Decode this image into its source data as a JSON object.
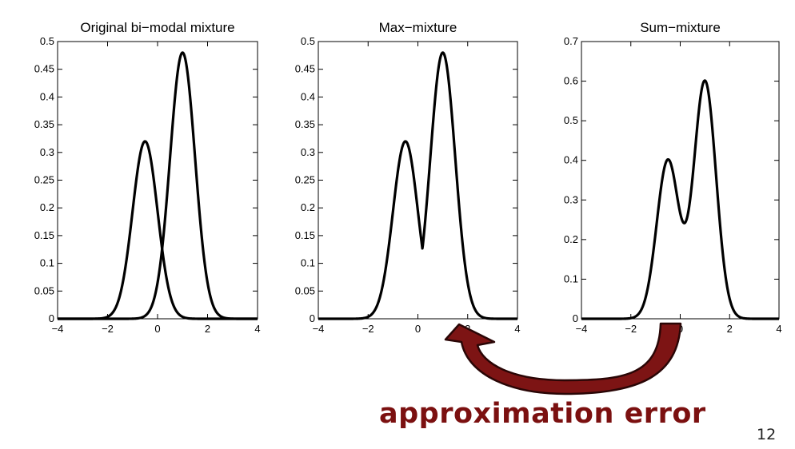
{
  "chart_data": [
    {
      "type": "line",
      "title": "Original bi−modal mixture",
      "xlim": [
        -4,
        4
      ],
      "ylim": [
        0,
        0.5
      ],
      "xticks": [
        "−4",
        "−2",
        "0",
        "2",
        "4"
      ],
      "yticks": [
        "0",
        "0.05",
        "0.1",
        "0.15",
        "0.2",
        "0.25",
        "0.3",
        "0.35",
        "0.4",
        "0.45",
        "0.5"
      ],
      "components": [
        {
          "mean": -0.5,
          "peak": 0.32,
          "sd": 0.5
        },
        {
          "mean": 1.0,
          "peak": 0.48,
          "sd": 0.5
        }
      ],
      "series": [
        {
          "x": [
            -4,
            -2,
            -1.5,
            -1,
            -0.5,
            0,
            0.5,
            1,
            1.5,
            2,
            2.5,
            4
          ],
          "y": [
            0,
            0.004,
            0.043,
            0.194,
            0.32,
            0.194,
            0.043,
            0.004,
            0,
            0,
            0,
            0
          ]
        },
        {
          "x": [
            -4,
            -1,
            -0.5,
            0,
            0.5,
            1,
            1.5,
            2,
            2.5,
            3,
            4
          ],
          "y": [
            0,
            0,
            0.005,
            0.065,
            0.291,
            0.48,
            0.291,
            0.065,
            0.005,
            0,
            0
          ]
        }
      ]
    },
    {
      "type": "line",
      "title": "Max−mixture",
      "xlim": [
        -4,
        4
      ],
      "ylim": [
        0,
        0.5
      ],
      "xticks": [
        "−4",
        "−2",
        "0",
        "2",
        "4"
      ],
      "yticks": [
        "0",
        "0.05",
        "0.1",
        "0.15",
        "0.2",
        "0.25",
        "0.3",
        "0.35",
        "0.4",
        "0.45",
        "0.5"
      ],
      "components": [
        {
          "mean": -0.5,
          "peak": 0.32,
          "sd": 0.5
        },
        {
          "mean": 1.0,
          "peak": 0.48,
          "sd": 0.5
        }
      ],
      "series": [
        {
          "x": [
            -4,
            -2,
            -1.5,
            -1,
            -0.5,
            0,
            0.2,
            0.5,
            1,
            1.5,
            2,
            2.5,
            4
          ],
          "y": [
            0,
            0.004,
            0.043,
            0.194,
            0.32,
            0.194,
            0.125,
            0.291,
            0.48,
            0.291,
            0.065,
            0.005,
            0
          ]
        }
      ]
    },
    {
      "type": "line",
      "title": "Sum−mixture",
      "xlim": [
        -4,
        4
      ],
      "ylim": [
        0,
        0.7
      ],
      "xticks": [
        "−4",
        "−2",
        "0",
        "2",
        "4"
      ],
      "yticks": [
        "0",
        "0.1",
        "0.2",
        "0.3",
        "0.4",
        "0.5",
        "0.6",
        "0.7"
      ],
      "components": [
        {
          "mean": -0.5,
          "peak": 0.4,
          "sd": 0.45
        },
        {
          "mean": 1.0,
          "peak": 0.6,
          "sd": 0.45
        }
      ],
      "series": [
        {
          "x": [
            -4,
            -2,
            -1.5,
            -1,
            -0.5,
            0,
            0.2,
            0.5,
            1,
            1.5,
            2,
            2.5,
            4
          ],
          "y": [
            0,
            0.003,
            0.04,
            0.22,
            0.41,
            0.34,
            0.31,
            0.43,
            0.605,
            0.3,
            0.06,
            0.005,
            0
          ]
        }
      ]
    }
  ],
  "annotation": {
    "text": "approximation error",
    "color": "#7b1010",
    "arrow_icon": "curved-arrow-icon"
  },
  "page_number": "12"
}
